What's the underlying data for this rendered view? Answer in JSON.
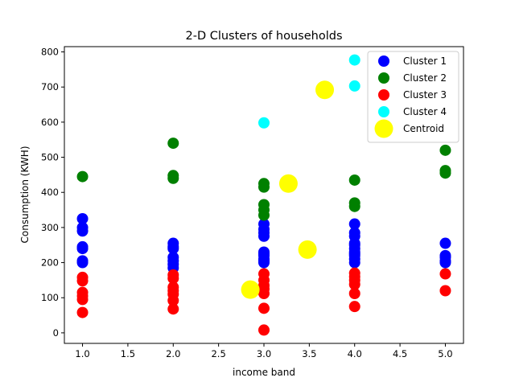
{
  "chart_data": {
    "type": "scatter",
    "title": "2-D Clusters of households",
    "xlabel": "income band",
    "ylabel": "Consumption (KWH)",
    "xlim": [
      0.8,
      5.2
    ],
    "ylim": [
      -30,
      815
    ],
    "x_ticks": [
      "1.0",
      "1.5",
      "2.0",
      "2.5",
      "3.0",
      "3.5",
      "4.0",
      "4.5",
      "5.0"
    ],
    "y_ticks": [
      "0",
      "100",
      "200",
      "300",
      "400",
      "500",
      "600",
      "700",
      "800"
    ],
    "legend_position": "top-right",
    "series": [
      {
        "name": "Cluster 1",
        "color": "#0000ff",
        "points": [
          [
            1,
            325
          ],
          [
            1,
            300
          ],
          [
            1,
            290
          ],
          [
            1,
            245
          ],
          [
            1,
            240
          ],
          [
            1,
            205
          ],
          [
            1,
            200
          ],
          [
            2,
            255
          ],
          [
            2,
            245
          ],
          [
            2,
            240
          ],
          [
            2,
            215
          ],
          [
            2,
            205
          ],
          [
            2,
            195
          ],
          [
            2,
            185
          ],
          [
            3,
            310
          ],
          [
            3,
            295
          ],
          [
            3,
            285
          ],
          [
            3,
            275
          ],
          [
            3,
            230
          ],
          [
            3,
            225
          ],
          [
            3,
            220
          ],
          [
            3,
            210
          ],
          [
            3,
            205
          ],
          [
            3,
            200
          ],
          [
            4,
            310
          ],
          [
            4,
            285
          ],
          [
            4,
            275
          ],
          [
            4,
            255
          ],
          [
            4,
            250
          ],
          [
            4,
            240
          ],
          [
            4,
            230
          ],
          [
            4,
            225
          ],
          [
            4,
            220
          ],
          [
            4,
            210
          ],
          [
            4,
            200
          ],
          [
            5,
            255
          ],
          [
            5,
            220
          ],
          [
            5,
            215
          ],
          [
            5,
            205
          ],
          [
            5,
            200
          ]
        ]
      },
      {
        "name": "Cluster 2",
        "color": "#008000",
        "points": [
          [
            1,
            445
          ],
          [
            2,
            540
          ],
          [
            2,
            448
          ],
          [
            2,
            440
          ],
          [
            3,
            425
          ],
          [
            3,
            415
          ],
          [
            3,
            365
          ],
          [
            3,
            350
          ],
          [
            3,
            335
          ],
          [
            4,
            435
          ],
          [
            4,
            370
          ],
          [
            4,
            360
          ],
          [
            5,
            520
          ],
          [
            5,
            462
          ],
          [
            5,
            455
          ]
        ]
      },
      {
        "name": "Cluster 3",
        "color": "#ff0000",
        "points": [
          [
            1,
            158
          ],
          [
            1,
            148
          ],
          [
            1,
            115
          ],
          [
            1,
            105
          ],
          [
            1,
            95
          ],
          [
            1,
            58
          ],
          [
            2,
            165
          ],
          [
            2,
            155
          ],
          [
            2,
            130
          ],
          [
            2,
            120
          ],
          [
            2,
            110
          ],
          [
            2,
            92
          ],
          [
            2,
            68
          ],
          [
            3,
            168
          ],
          [
            3,
            150
          ],
          [
            3,
            135
          ],
          [
            3,
            125
          ],
          [
            3,
            112
          ],
          [
            3,
            70
          ],
          [
            3,
            8
          ],
          [
            4,
            170
          ],
          [
            4,
            160
          ],
          [
            4,
            150
          ],
          [
            4,
            138
          ],
          [
            4,
            112
          ],
          [
            4,
            75
          ],
          [
            5,
            168
          ],
          [
            5,
            120
          ]
        ]
      },
      {
        "name": "Cluster 4",
        "color": "#00ffff",
        "points": [
          [
            3,
            598
          ],
          [
            4,
            777
          ],
          [
            4,
            703
          ]
        ]
      },
      {
        "name": "Centroid",
        "color": "#ffff00",
        "points": [
          [
            2.85,
            123
          ],
          [
            3.27,
            425
          ],
          [
            3.48,
            237
          ],
          [
            3.67,
            692
          ]
        ]
      }
    ]
  }
}
